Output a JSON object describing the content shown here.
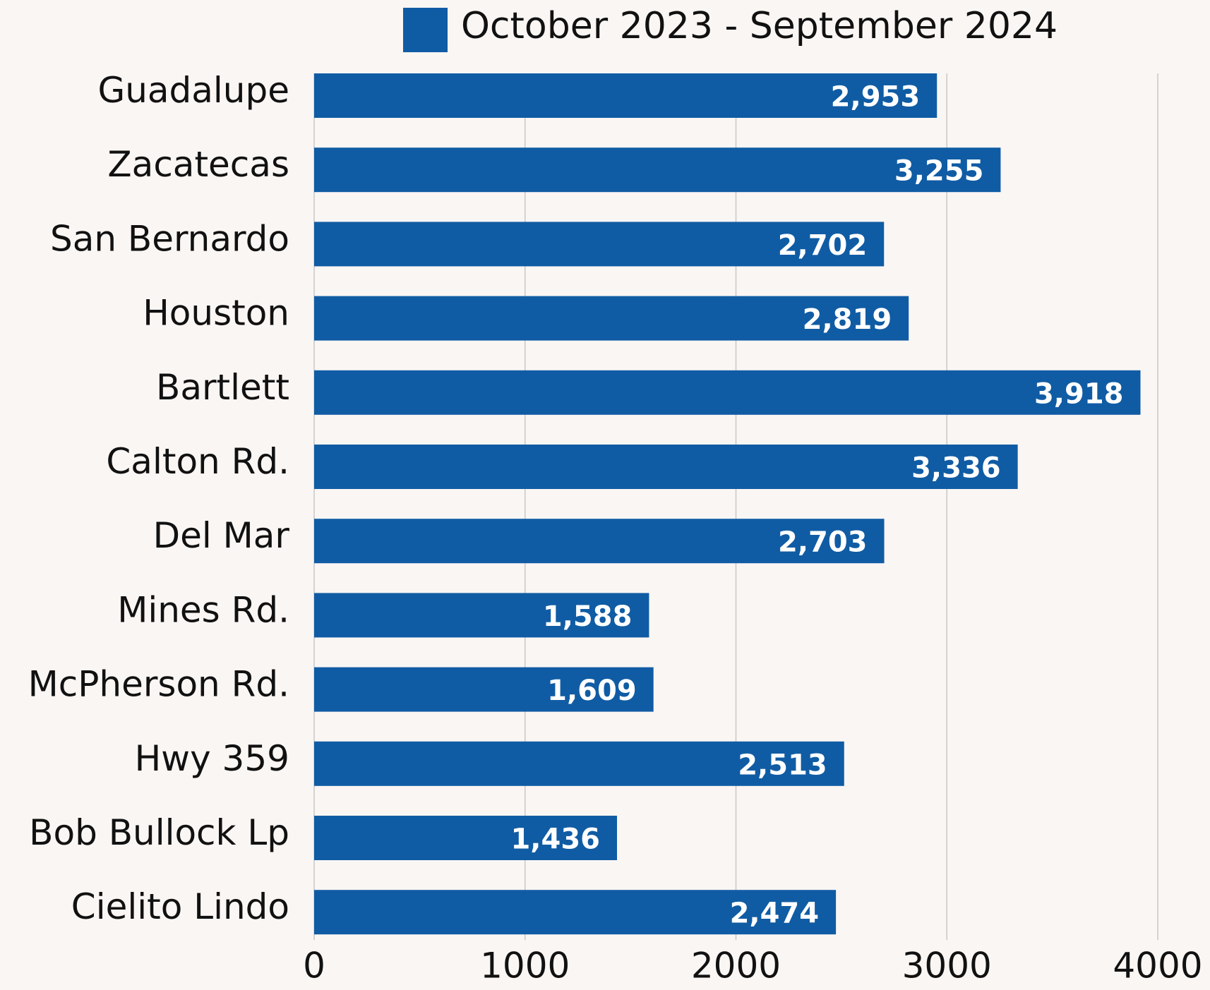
{
  "chart_data": {
    "type": "bar",
    "orientation": "horizontal",
    "categories": [
      "Guadalupe",
      "Zacatecas",
      "San Bernardo",
      "Houston",
      "Bartlett",
      "Calton Rd.",
      "Del Mar",
      "Mines Rd.",
      "McPherson Rd.",
      "Hwy 359",
      "Bob Bullock Lp",
      "Cielito Lindo"
    ],
    "series": [
      {
        "name": "October 2023 - September 2024",
        "color": "#105ca4",
        "values": [
          2953,
          3255,
          2702,
          2819,
          3918,
          3336,
          2703,
          1588,
          1609,
          2513,
          1436,
          2474
        ],
        "value_labels": [
          "2,953",
          "3,255",
          "2,702",
          "2,819",
          "3,918",
          "3,336",
          "2,703",
          "1,588",
          "1,609",
          "2,513",
          "1,436",
          "2,474"
        ]
      }
    ],
    "xlim": [
      0,
      4000
    ],
    "xticks": [
      0,
      1000,
      2000,
      3000,
      4000
    ],
    "grid": true,
    "legend": "top"
  }
}
